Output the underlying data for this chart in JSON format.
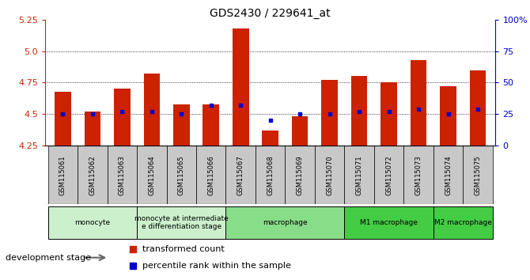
{
  "title": "GDS2430 / 229641_at",
  "samples": [
    "GSM115061",
    "GSM115062",
    "GSM115063",
    "GSM115064",
    "GSM115065",
    "GSM115066",
    "GSM115067",
    "GSM115068",
    "GSM115069",
    "GSM115070",
    "GSM115071",
    "GSM115072",
    "GSM115073",
    "GSM115074",
    "GSM115075"
  ],
  "transformed_count": [
    4.68,
    4.52,
    4.7,
    4.82,
    4.58,
    4.58,
    5.18,
    4.37,
    4.48,
    4.77,
    4.8,
    4.75,
    4.93,
    4.72,
    4.85
  ],
  "percentile_rank": [
    25,
    25,
    27,
    27,
    25,
    32,
    32,
    20,
    25,
    25,
    27,
    27,
    29,
    25,
    29
  ],
  "ylim": [
    4.25,
    5.25
  ],
  "yticks_left": [
    4.25,
    4.5,
    4.75,
    5.0,
    5.25
  ],
  "right_yticks_pct": [
    0,
    25,
    50,
    75,
    100
  ],
  "right_ytick_labels": [
    "0",
    "25",
    "50",
    "75",
    "100%"
  ],
  "bar_color": "#cc2200",
  "dot_color": "#0000cc",
  "bg_color": "#ffffff",
  "left_axis_color": "#cc2200",
  "right_axis_color": "#0000cc",
  "tick_label_color": "#333333",
  "xtick_bg_color": "#c8c8c8",
  "stage_groups": [
    {
      "label": "monocyte",
      "cols": [
        0,
        1,
        2
      ],
      "color": "#c8f0c8"
    },
    {
      "label": "monocyte at intermediate\ne differentiation stage",
      "cols": [
        3,
        4,
        5
      ],
      "color": "#c8f0c8"
    },
    {
      "label": "macrophage",
      "cols": [
        6,
        7,
        8,
        9
      ],
      "color": "#80e080"
    },
    {
      "label": "M1 macrophage",
      "cols": [
        10,
        11,
        12
      ],
      "color": "#44cc44"
    },
    {
      "label": "M2 macrophage",
      "cols": [
        13,
        14
      ],
      "color": "#44cc44"
    }
  ],
  "title_fontsize": 10,
  "bar_width": 0.55
}
